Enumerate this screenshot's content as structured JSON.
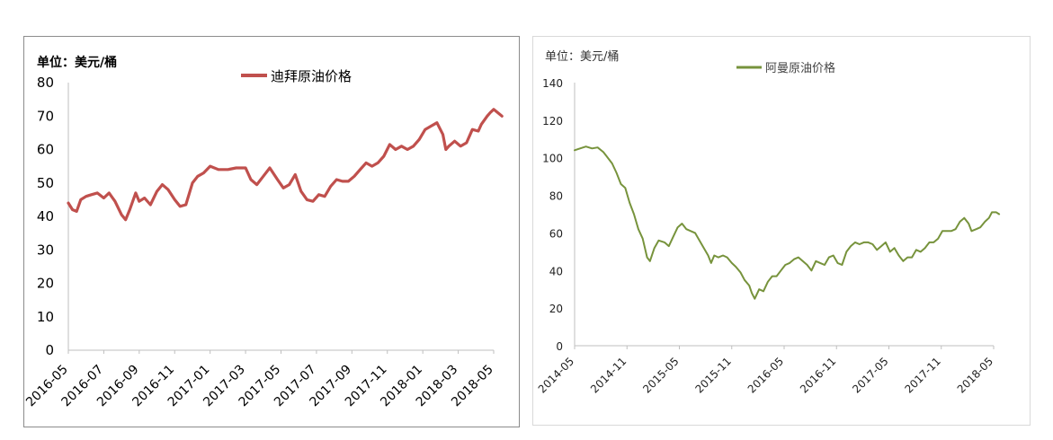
{
  "chart_data": [
    {
      "type": "line",
      "unit_label": "单位：美元/桶",
      "series": [
        {
          "name": "迪拜原油价格",
          "color": "#c0504d",
          "points": [
            [
              "2016-05-01",
              44
            ],
            [
              "2016-05-08",
              42
            ],
            [
              "2016-05-15",
              41.5
            ],
            [
              "2016-05-22",
              45
            ],
            [
              "2016-06-01",
              46
            ],
            [
              "2016-06-10",
              46.5
            ],
            [
              "2016-06-20",
              47
            ],
            [
              "2016-07-01",
              45.5
            ],
            [
              "2016-07-10",
              47
            ],
            [
              "2016-07-20",
              44.5
            ],
            [
              "2016-08-01",
              40.5
            ],
            [
              "2016-08-08",
              39
            ],
            [
              "2016-08-15",
              42
            ],
            [
              "2016-08-25",
              47
            ],
            [
              "2016-09-01",
              44.5
            ],
            [
              "2016-09-10",
              45.5
            ],
            [
              "2016-09-20",
              43.5
            ],
            [
              "2016-10-01",
              47.5
            ],
            [
              "2016-10-10",
              49.5
            ],
            [
              "2016-10-20",
              48
            ],
            [
              "2016-11-01",
              45
            ],
            [
              "2016-11-10",
              43
            ],
            [
              "2016-11-20",
              43.5
            ],
            [
              "2016-12-01",
              50
            ],
            [
              "2016-12-10",
              52
            ],
            [
              "2016-12-20",
              53
            ],
            [
              "2017-01-01",
              55
            ],
            [
              "2017-01-15",
              54
            ],
            [
              "2017-02-01",
              54
            ],
            [
              "2017-02-15",
              54.5
            ],
            [
              "2017-03-01",
              54.5
            ],
            [
              "2017-03-10",
              51
            ],
            [
              "2017-03-20",
              49.5
            ],
            [
              "2017-04-01",
              52
            ],
            [
              "2017-04-12",
              54.5
            ],
            [
              "2017-04-25",
              51
            ],
            [
              "2017-05-05",
              48.5
            ],
            [
              "2017-05-15",
              49.5
            ],
            [
              "2017-05-25",
              52.5
            ],
            [
              "2017-06-05",
              47.5
            ],
            [
              "2017-06-15",
              45
            ],
            [
              "2017-06-25",
              44.5
            ],
            [
              "2017-07-05",
              46.5
            ],
            [
              "2017-07-15",
              46
            ],
            [
              "2017-07-25",
              49
            ],
            [
              "2017-08-05",
              51
            ],
            [
              "2017-08-15",
              50.5
            ],
            [
              "2017-08-25",
              50.5
            ],
            [
              "2017-09-05",
              52
            ],
            [
              "2017-09-15",
              54
            ],
            [
              "2017-09-25",
              56
            ],
            [
              "2017-10-05",
              55
            ],
            [
              "2017-10-15",
              56
            ],
            [
              "2017-10-25",
              58
            ],
            [
              "2017-11-05",
              61.5
            ],
            [
              "2017-11-15",
              60
            ],
            [
              "2017-11-25",
              61
            ],
            [
              "2017-12-05",
              60
            ],
            [
              "2017-12-15",
              61
            ],
            [
              "2017-12-25",
              63
            ],
            [
              "2018-01-05",
              66
            ],
            [
              "2018-01-15",
              67
            ],
            [
              "2018-01-25",
              68
            ],
            [
              "2018-02-05",
              64.5
            ],
            [
              "2018-02-10",
              60
            ],
            [
              "2018-02-15",
              61
            ],
            [
              "2018-02-25",
              62.5
            ],
            [
              "2018-03-05",
              61
            ],
            [
              "2018-03-15",
              62
            ],
            [
              "2018-03-25",
              66
            ],
            [
              "2018-04-05",
              65.5
            ],
            [
              "2018-04-10",
              67.5
            ],
            [
              "2018-04-20",
              70
            ],
            [
              "2018-04-25",
              71
            ],
            [
              "2018-05-01",
              72
            ],
            [
              "2018-05-08",
              71
            ],
            [
              "2018-05-15",
              70
            ]
          ]
        }
      ],
      "x_ticks": [
        "2016-05",
        "2016-07",
        "2016-09",
        "2016-11",
        "2017-01",
        "2017-03",
        "2017-05",
        "2017-07",
        "2017-09",
        "2017-11",
        "2018-01",
        "2018-03",
        "2018-05"
      ],
      "y_ticks": [
        "0",
        "10",
        "20",
        "30",
        "40",
        "50",
        "60",
        "70",
        "80"
      ],
      "ylim": [
        0,
        80
      ],
      "xlim": [
        "2016-05",
        "2018-05"
      ],
      "legend_position": "top",
      "grid": false
    },
    {
      "type": "line",
      "unit_label": "单位：美元/桶",
      "series": [
        {
          "name": "阿曼原油价格",
          "color": "#77933c",
          "points": [
            [
              "2014-05-01",
              104
            ],
            [
              "2014-05-20",
              105
            ],
            [
              "2014-06-10",
              106
            ],
            [
              "2014-07-01",
              105
            ],
            [
              "2014-07-20",
              105.5
            ],
            [
              "2014-08-10",
              103
            ],
            [
              "2014-08-20",
              101
            ],
            [
              "2014-09-10",
              97
            ],
            [
              "2014-09-25",
              92
            ],
            [
              "2014-10-10",
              86
            ],
            [
              "2014-10-25",
              84
            ],
            [
              "2014-11-10",
              76
            ],
            [
              "2014-11-25",
              70
            ],
            [
              "2014-12-10",
              62
            ],
            [
              "2014-12-25",
              57
            ],
            [
              "2015-01-10",
              47
            ],
            [
              "2015-01-20",
              45
            ],
            [
              "2015-02-05",
              52
            ],
            [
              "2015-02-20",
              56
            ],
            [
              "2015-03-10",
              55
            ],
            [
              "2015-03-25",
              53
            ],
            [
              "2015-04-10",
              58
            ],
            [
              "2015-04-25",
              63
            ],
            [
              "2015-05-10",
              65
            ],
            [
              "2015-05-25",
              62
            ],
            [
              "2015-06-10",
              61
            ],
            [
              "2015-06-25",
              60
            ],
            [
              "2015-07-10",
              56
            ],
            [
              "2015-07-25",
              52
            ],
            [
              "2015-08-10",
              48
            ],
            [
              "2015-08-20",
              44
            ],
            [
              "2015-09-01",
              48
            ],
            [
              "2015-09-15",
              47
            ],
            [
              "2015-10-01",
              48
            ],
            [
              "2015-10-15",
              47
            ],
            [
              "2015-11-01",
              44
            ],
            [
              "2015-11-15",
              42
            ],
            [
              "2015-12-01",
              39
            ],
            [
              "2015-12-15",
              35
            ],
            [
              "2016-01-01",
              32
            ],
            [
              "2016-01-10",
              28
            ],
            [
              "2016-01-20",
              25
            ],
            [
              "2016-02-05",
              30
            ],
            [
              "2016-02-20",
              29
            ],
            [
              "2016-03-05",
              34
            ],
            [
              "2016-03-20",
              37
            ],
            [
              "2016-04-05",
              37
            ],
            [
              "2016-04-20",
              40
            ],
            [
              "2016-05-05",
              43
            ],
            [
              "2016-05-20",
              44
            ],
            [
              "2016-06-05",
              46
            ],
            [
              "2016-06-20",
              47
            ],
            [
              "2016-07-05",
              45
            ],
            [
              "2016-07-20",
              43
            ],
            [
              "2016-08-05",
              40
            ],
            [
              "2016-08-20",
              45
            ],
            [
              "2016-09-05",
              44
            ],
            [
              "2016-09-20",
              43
            ],
            [
              "2016-10-05",
              47
            ],
            [
              "2016-10-20",
              48
            ],
            [
              "2016-11-05",
              44
            ],
            [
              "2016-11-20",
              43
            ],
            [
              "2016-12-05",
              50
            ],
            [
              "2016-12-20",
              53
            ],
            [
              "2017-01-05",
              55
            ],
            [
              "2017-01-20",
              54
            ],
            [
              "2017-02-05",
              55
            ],
            [
              "2017-02-20",
              55
            ],
            [
              "2017-03-05",
              54
            ],
            [
              "2017-03-20",
              51
            ],
            [
              "2017-04-05",
              53
            ],
            [
              "2017-04-20",
              55
            ],
            [
              "2017-05-05",
              50
            ],
            [
              "2017-05-20",
              52
            ],
            [
              "2017-06-05",
              48
            ],
            [
              "2017-06-20",
              45
            ],
            [
              "2017-07-05",
              47
            ],
            [
              "2017-07-20",
              47
            ],
            [
              "2017-08-05",
              51
            ],
            [
              "2017-08-20",
              50
            ],
            [
              "2017-09-05",
              52
            ],
            [
              "2017-09-20",
              55
            ],
            [
              "2017-10-05",
              55
            ],
            [
              "2017-10-20",
              57
            ],
            [
              "2017-11-05",
              61
            ],
            [
              "2017-11-20",
              61
            ],
            [
              "2017-12-05",
              61
            ],
            [
              "2017-12-20",
              62
            ],
            [
              "2018-01-05",
              66
            ],
            [
              "2018-01-20",
              68
            ],
            [
              "2018-02-05",
              65
            ],
            [
              "2018-02-15",
              61
            ],
            [
              "2018-03-01",
              62
            ],
            [
              "2018-03-15",
              63
            ],
            [
              "2018-04-01",
              66
            ],
            [
              "2018-04-15",
              68
            ],
            [
              "2018-04-25",
              71
            ],
            [
              "2018-05-10",
              71
            ],
            [
              "2018-05-20",
              70
            ]
          ]
        }
      ],
      "x_ticks": [
        "2014-05",
        "2014-11",
        "2015-05",
        "2015-11",
        "2016-05",
        "2016-11",
        "2017-05",
        "2017-11",
        "2018-05"
      ],
      "y_ticks": [
        "0",
        "20",
        "40",
        "60",
        "80",
        "100",
        "120",
        "140"
      ],
      "ylim": [
        0,
        140
      ],
      "xlim": [
        "2014-05",
        "2018-05"
      ],
      "legend_position": "top",
      "grid": false
    }
  ]
}
